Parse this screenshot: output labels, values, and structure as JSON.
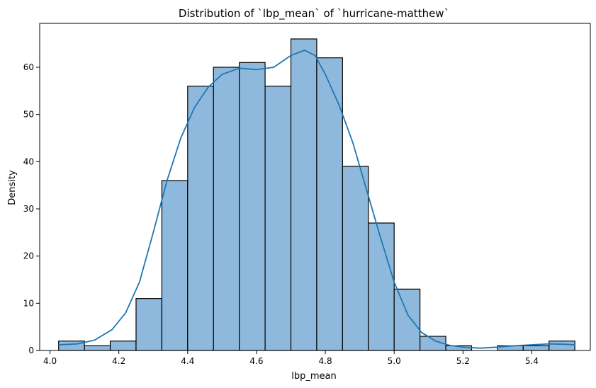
{
  "chart_data": {
    "type": "bar",
    "title": "Distribution of `lbp_mean` of `hurricane-matthew`",
    "xlabel": "lbp_mean",
    "ylabel": "Density",
    "xlim": [
      3.97,
      5.57
    ],
    "ylim": [
      0,
      69.3
    ],
    "xticks": [
      4.0,
      4.2,
      4.4,
      4.6,
      4.8,
      5.0,
      5.2,
      5.4
    ],
    "xtick_labels": [
      "4.0",
      "4.2",
      "4.4",
      "4.6",
      "4.8",
      "5.0",
      "5.2",
      "5.4"
    ],
    "yticks": [
      0,
      10,
      20,
      30,
      40,
      50,
      60
    ],
    "ytick_labels": [
      "0",
      "10",
      "20",
      "30",
      "40",
      "50",
      "60"
    ],
    "bins": [
      {
        "x0": 4.025,
        "x1": 4.1,
        "value": 2
      },
      {
        "x0": 4.1,
        "x1": 4.175,
        "value": 1
      },
      {
        "x0": 4.175,
        "x1": 4.25,
        "value": 2
      },
      {
        "x0": 4.25,
        "x1": 4.325,
        "value": 11
      },
      {
        "x0": 4.325,
        "x1": 4.4,
        "value": 36
      },
      {
        "x0": 4.4,
        "x1": 4.475,
        "value": 56
      },
      {
        "x0": 4.475,
        "x1": 4.55,
        "value": 60
      },
      {
        "x0": 4.55,
        "x1": 4.625,
        "value": 61
      },
      {
        "x0": 4.625,
        "x1": 4.7,
        "value": 56
      },
      {
        "x0": 4.7,
        "x1": 4.775,
        "value": 66
      },
      {
        "x0": 4.775,
        "x1": 4.85,
        "value": 62
      },
      {
        "x0": 4.85,
        "x1": 4.925,
        "value": 39
      },
      {
        "x0": 4.925,
        "x1": 5.0,
        "value": 27
      },
      {
        "x0": 5.0,
        "x1": 5.075,
        "value": 13
      },
      {
        "x0": 5.075,
        "x1": 5.15,
        "value": 3
      },
      {
        "x0": 5.15,
        "x1": 5.225,
        "value": 1
      },
      {
        "x0": 5.225,
        "x1": 5.3,
        "value": 0
      },
      {
        "x0": 5.3,
        "x1": 5.375,
        "value": 1
      },
      {
        "x0": 5.375,
        "x1": 5.45,
        "value": 1
      },
      {
        "x0": 5.45,
        "x1": 5.525,
        "value": 2
      }
    ],
    "kde": {
      "x": [
        4.025,
        4.08,
        4.13,
        4.18,
        4.22,
        4.26,
        4.3,
        4.34,
        4.38,
        4.42,
        4.46,
        4.5,
        4.55,
        4.6,
        4.65,
        4.7,
        4.74,
        4.77,
        4.8,
        4.84,
        4.88,
        4.92,
        4.96,
        5.0,
        5.04,
        5.08,
        5.12,
        5.16,
        5.2,
        5.25,
        5.3,
        5.35,
        5.4,
        5.45,
        5.5,
        5.525
      ],
      "y": [
        1.2,
        1.4,
        2.2,
        4.4,
        8.0,
        14.5,
        25.0,
        36.0,
        45.0,
        51.5,
        55.8,
        58.5,
        59.8,
        59.5,
        60.0,
        62.5,
        63.6,
        62.5,
        58.5,
        52.0,
        44.0,
        34.0,
        24.0,
        14.5,
        7.5,
        3.8,
        2.0,
        1.1,
        0.7,
        0.5,
        0.7,
        1.0,
        1.2,
        1.4,
        1.3,
        1.2
      ]
    },
    "grid": false,
    "legend": "none",
    "colors": {
      "bar": "#8fb9dc",
      "kde": "#1f77b4"
    }
  }
}
